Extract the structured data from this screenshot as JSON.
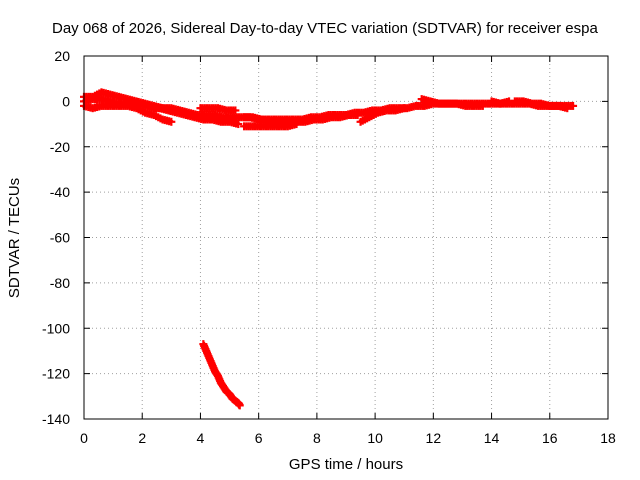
{
  "chart_data": {
    "type": "scatter",
    "title": "Day 068 of 2026, Sidereal Day-to-day VTEC variation (SDTVAR) for receiver espa",
    "xlabel": "GPS time / hours",
    "ylabel": "SDTVAR / TECUs",
    "xlim": [
      0,
      18
    ],
    "ylim": [
      -140,
      20
    ],
    "xticks": [
      0,
      2,
      4,
      6,
      8,
      10,
      12,
      14,
      16,
      18
    ],
    "yticks": [
      20,
      0,
      -20,
      -40,
      -60,
      -80,
      -100,
      -120,
      -140
    ],
    "grid": true,
    "legend": "none",
    "series": [
      {
        "name": "SDTVAR",
        "color": "#ff0000",
        "marker": "plus",
        "segments": [
          {
            "x": [
              0.0,
              0.3,
              0.6,
              0.9,
              1.2,
              1.5,
              1.8,
              2.1,
              2.4,
              2.7,
              3.0,
              3.3,
              3.6,
              3.9,
              4.2,
              4.5,
              4.8,
              5.1,
              5.4,
              5.7,
              6.0,
              6.3,
              6.6,
              6.9,
              7.2,
              7.5,
              7.8,
              8.1,
              8.4,
              8.7,
              9.0,
              9.3,
              9.6,
              9.9,
              10.2,
              10.5,
              10.8,
              11.1,
              11.4,
              11.7,
              12.0,
              12.3,
              12.6,
              12.9,
              13.2,
              13.5,
              13.8,
              14.1,
              14.4,
              14.7,
              15.0,
              15.3,
              15.6,
              15.9,
              16.2,
              16.5,
              16.8
            ],
            "y": [
              0,
              1,
              1,
              0,
              -1,
              -1,
              -1,
              -2,
              -3,
              -3,
              -3,
              -4,
              -5,
              -6,
              -6,
              -6,
              -7,
              -7,
              -7,
              -7,
              -8,
              -8,
              -8,
              -8,
              -8,
              -8,
              -7,
              -7,
              -6,
              -6,
              -6,
              -5,
              -5,
              -4,
              -4,
              -3,
              -3,
              -3,
              -2,
              -2,
              -1,
              -1,
              -1,
              -1,
              -1,
              -1,
              -1,
              -1,
              -1,
              -1,
              -1,
              -1,
              -2,
              -2,
              -2,
              -2,
              -2
            ]
          },
          {
            "x": [
              0.0,
              0.3,
              0.6,
              0.9,
              1.2,
              1.5,
              1.8,
              2.1,
              2.4,
              2.7,
              3.0
            ],
            "y": [
              2,
              2,
              4,
              3,
              2,
              1,
              0,
              -1,
              -2,
              -3,
              -4
            ]
          },
          {
            "x": [
              0.0,
              0.3,
              0.6,
              0.9,
              1.2,
              1.5,
              1.8,
              2.1,
              2.4,
              2.7,
              3.0
            ],
            "y": [
              -2,
              -3,
              -2,
              -2,
              -2,
              -2,
              -3,
              -5,
              -6,
              -8,
              -9
            ]
          },
          {
            "x": [
              2.6,
              2.9,
              3.2,
              3.5,
              3.8,
              4.1,
              4.4,
              4.7,
              5.0,
              5.3
            ],
            "y": [
              -3,
              -4,
              -5,
              -6,
              -7,
              -8,
              -8,
              -9,
              -9,
              -10
            ]
          },
          {
            "x": [
              4.0,
              4.3,
              4.6,
              4.9,
              5.2
            ],
            "y": [
              -3,
              -3,
              -3,
              -4,
              -4
            ]
          },
          {
            "x": [
              5.5,
              5.8,
              6.1,
              6.4,
              6.7,
              7.0,
              7.3,
              7.6,
              7.9,
              8.2,
              8.5,
              8.8,
              9.1,
              9.4
            ],
            "y": [
              -7,
              -7,
              -8,
              -9,
              -9,
              -9,
              -9,
              -9,
              -8,
              -8,
              -7,
              -7,
              -6,
              -6
            ]
          },
          {
            "x": [
              5.5,
              5.8,
              6.1,
              6.4,
              6.7,
              7.0,
              7.3
            ],
            "y": [
              -11,
              -11,
              -11,
              -11,
              -11,
              -11,
              -10
            ]
          },
          {
            "x": [
              9.5,
              9.8,
              10.1,
              10.4,
              10.7,
              11.0
            ],
            "y": [
              -9,
              -7,
              -5,
              -4,
              -4,
              -3
            ]
          },
          {
            "x": [
              11.6,
              11.9,
              12.2,
              12.5,
              12.8,
              13.1,
              13.4,
              13.7
            ],
            "y": [
              1,
              0,
              -1,
              -1,
              -1,
              -2,
              -2,
              -2
            ]
          },
          {
            "x": [
              14.0,
              14.3,
              14.6
            ],
            "y": [
              0,
              -1,
              0
            ]
          },
          {
            "x": [
              14.8,
              15.1,
              15.4,
              15.7,
              16.0,
              16.3,
              16.6
            ],
            "y": [
              0,
              0,
              -1,
              -1,
              -2,
              -2,
              -3
            ]
          },
          {
            "x": [
              4.1,
              4.2,
              4.3,
              4.4,
              4.5,
              4.6,
              4.7,
              4.8,
              4.9,
              5.0,
              5.1,
              5.2,
              5.3,
              5.35
            ],
            "y": [
              -107,
              -110,
              -113,
              -116,
              -119,
              -121,
              -124,
              -126,
              -128,
              -129,
              -131,
              -132,
              -133,
              -134
            ]
          }
        ]
      }
    ]
  }
}
